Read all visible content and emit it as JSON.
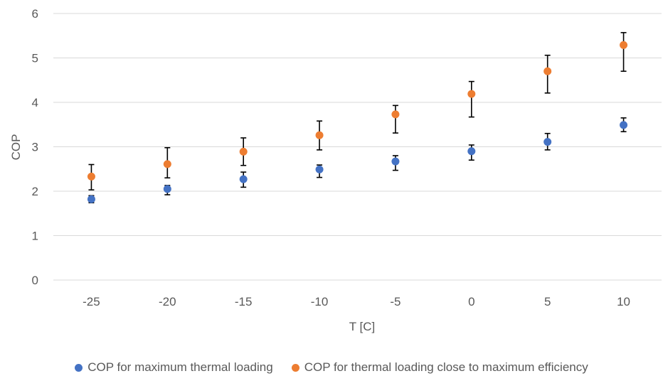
{
  "chart_data": {
    "type": "scatter",
    "xlabel": "T [C]",
    "ylabel": "COP",
    "ylim": [
      0,
      6
    ],
    "yticks": [
      "0",
      "1",
      "2",
      "3",
      "4",
      "5",
      "6"
    ],
    "categories": [
      "-25",
      "-20",
      "-15",
      "-10",
      "-5",
      "0",
      "5",
      "10"
    ],
    "grid": "horizontal",
    "legend_position": "bottom",
    "series": [
      {
        "name": "COP for maximum thermal loading",
        "color": "#4472c4",
        "values": [
          1.82,
          2.05,
          2.27,
          2.49,
          2.67,
          2.9,
          3.11,
          3.49
        ],
        "error_low": [
          1.74,
          1.92,
          2.09,
          2.31,
          2.47,
          2.7,
          2.93,
          3.34
        ],
        "error_high": [
          1.9,
          2.13,
          2.43,
          2.59,
          2.8,
          3.04,
          3.3,
          3.65
        ]
      },
      {
        "name": "COP for thermal loading close to maximum efficiency",
        "color": "#ed7d31",
        "values": [
          2.33,
          2.61,
          2.89,
          3.26,
          3.73,
          4.19,
          4.7,
          5.29
        ],
        "error_low": [
          2.03,
          2.3,
          2.58,
          2.93,
          3.31,
          3.67,
          4.21,
          4.7
        ],
        "error_high": [
          2.6,
          2.98,
          3.2,
          3.58,
          3.93,
          4.47,
          5.06,
          5.57
        ]
      }
    ]
  }
}
